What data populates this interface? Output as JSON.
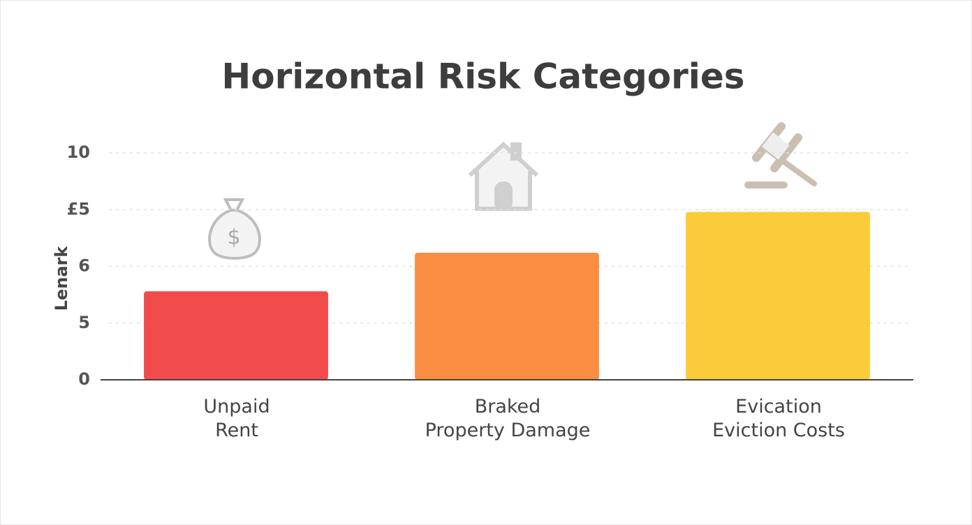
{
  "chart_data": {
    "type": "bar",
    "title": "Horizontal Risk Categories",
    "y_label": "Lenark",
    "categories": [
      "Unpaid\nRent",
      "Braked\nProperty Damage",
      "Evication\nEviction Costs"
    ],
    "values": [
      3.9,
      5.6,
      7.4
    ],
    "colors": [
      "#f24b4b",
      "#f98e43",
      "#fccb3c"
    ],
    "ylim": [
      0,
      10
    ],
    "yticks": [
      0,
      {
        "value": 2.5,
        "label": "5"
      },
      {
        "value": 5,
        "label": "6"
      },
      {
        "value": 7.5,
        "label": "£5"
      },
      10
    ],
    "grid": true
  }
}
